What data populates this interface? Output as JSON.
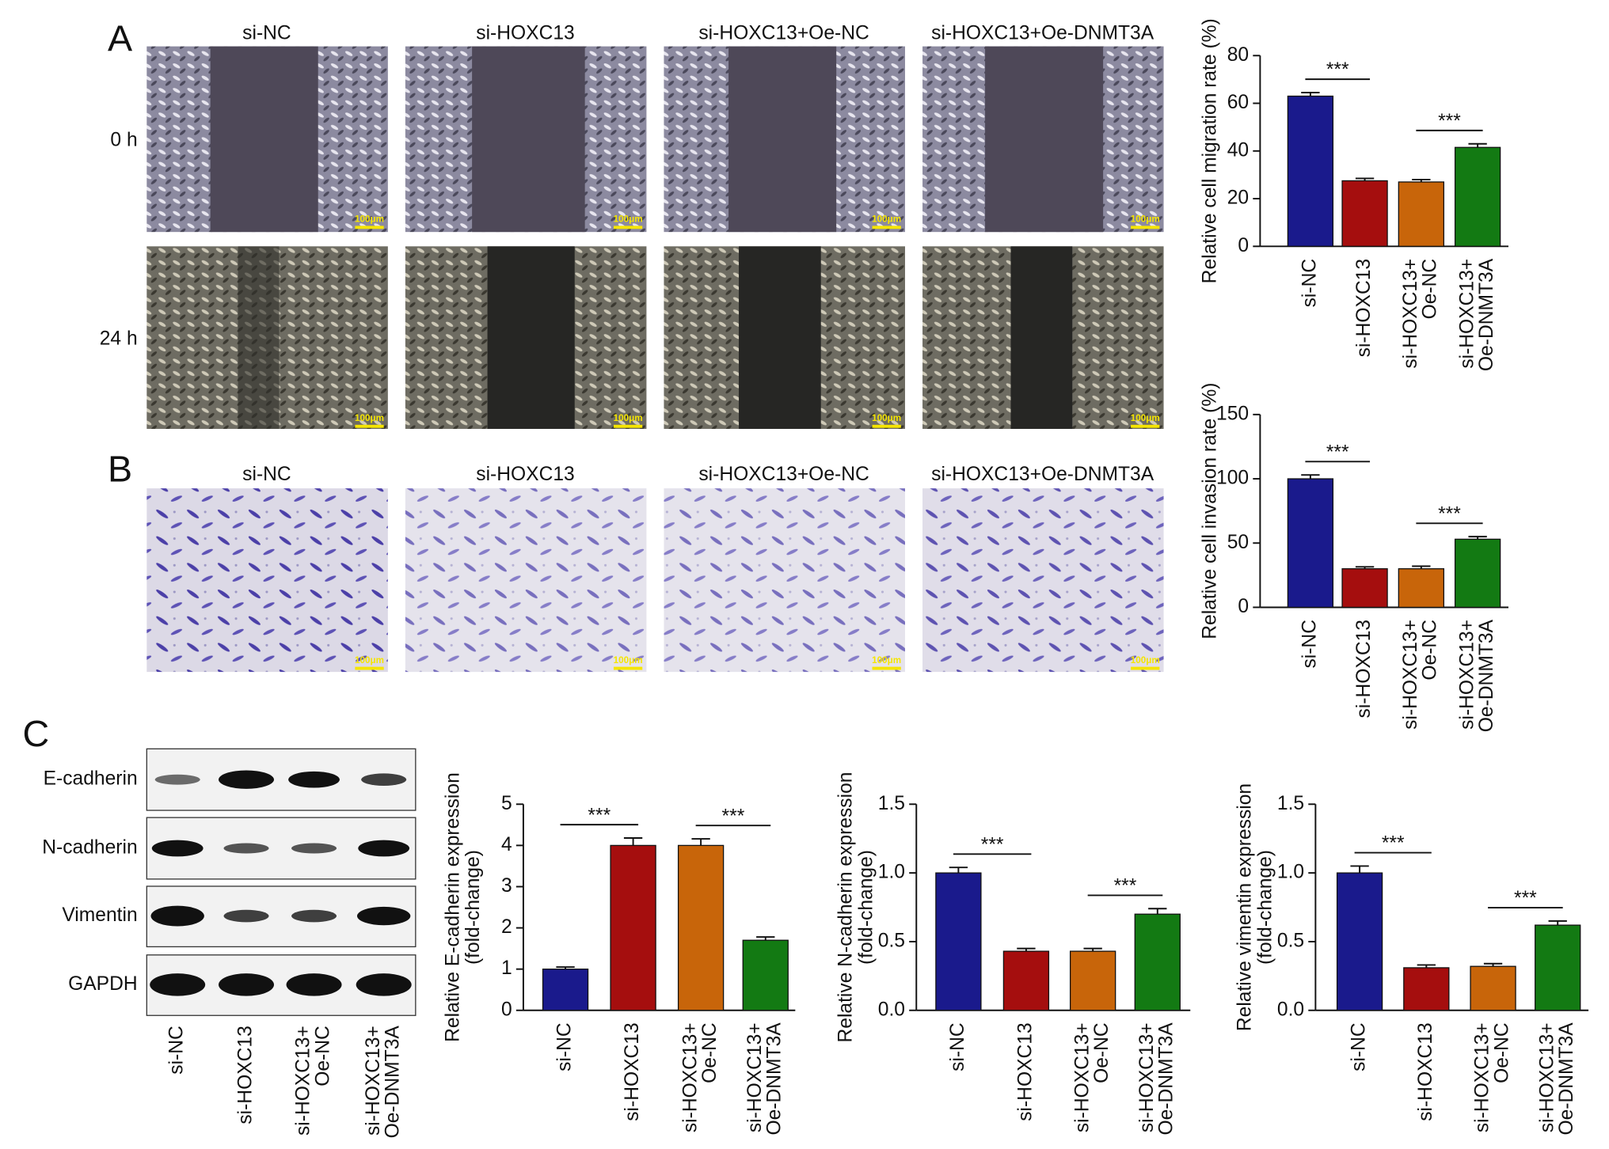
{
  "panels": {
    "letters": [
      "A",
      "B",
      "C"
    ],
    "wound_columns": [
      "si-NC",
      "si-HOXC13",
      "si-HOXC13+Oe-NC",
      "si-HOXC13+Oe-DNMT3A"
    ],
    "wound_rows": [
      "0 h",
      "24 h"
    ],
    "scale_bar": "100μm",
    "transwell_columns": [
      "si-NC",
      "si-HOXC13",
      "si-HOXC13+Oe-NC",
      "si-HOXC13+Oe-DNMT3A"
    ],
    "blot_rows": [
      "E-cadherin",
      "N-cadherin",
      "Vimentin",
      "GAPDH"
    ],
    "blot_lanes": [
      [
        "si-NC"
      ],
      [
        "si-HOXC13"
      ],
      [
        "si-HOXC13+",
        "Oe-NC"
      ],
      [
        "si-HOXC13+",
        "Oe-DNMT3A"
      ]
    ]
  },
  "chart_data": [
    {
      "type": "bar",
      "ylabel": [
        "Relative cell migration rate (%)"
      ],
      "categories": [
        [
          "si-NC"
        ],
        [
          "si-HOXC13"
        ],
        [
          "si-HOXC13+",
          "Oe-NC"
        ],
        [
          "si-HOXC13+",
          "Oe-DNMT3A"
        ]
      ],
      "values": [
        63,
        27.5,
        27,
        41.5
      ],
      "errors": [
        1.5,
        1,
        1,
        1.5
      ],
      "colors": [
        "#1a1a8c",
        "#a50e0e",
        "#c8650a",
        "#137a13"
      ],
      "ylim": [
        0,
        80
      ],
      "yticks": [
        0,
        20,
        40,
        60,
        80
      ],
      "significance": [
        {
          "from": 0,
          "to": 1,
          "label": "***"
        },
        {
          "from": 2,
          "to": 3,
          "label": "***"
        }
      ]
    },
    {
      "type": "bar",
      "ylabel": [
        "Relative cell invasion rate (%)"
      ],
      "categories": [
        [
          "si-NC"
        ],
        [
          "si-HOXC13"
        ],
        [
          "si-HOXC13+",
          "Oe-NC"
        ],
        [
          "si-HOXC13+",
          "Oe-DNMT3A"
        ]
      ],
      "values": [
        100,
        30,
        30,
        53
      ],
      "errors": [
        3,
        1.5,
        2,
        2
      ],
      "colors": [
        "#1a1a8c",
        "#a50e0e",
        "#c8650a",
        "#137a13"
      ],
      "ylim": [
        0,
        150
      ],
      "yticks": [
        0,
        50,
        100,
        150
      ],
      "significance": [
        {
          "from": 0,
          "to": 1,
          "label": "***"
        },
        {
          "from": 2,
          "to": 3,
          "label": "***"
        }
      ]
    },
    {
      "type": "bar",
      "ylabel": [
        "Relative E-cadherin expression",
        "(fold-change)"
      ],
      "categories": [
        [
          "si-NC"
        ],
        [
          "si-HOXC13"
        ],
        [
          "si-HOXC13+",
          "Oe-NC"
        ],
        [
          "si-HOXC13+",
          "Oe-DNMT3A"
        ]
      ],
      "values": [
        1.0,
        4.0,
        4.0,
        1.7
      ],
      "errors": [
        0.05,
        0.18,
        0.16,
        0.08
      ],
      "colors": [
        "#1a1a8c",
        "#a50e0e",
        "#c8650a",
        "#137a13"
      ],
      "ylim": [
        0,
        5
      ],
      "yticks": [
        0,
        1,
        2,
        3,
        4,
        5
      ],
      "significance": [
        {
          "from": 0,
          "to": 1,
          "label": "***"
        },
        {
          "from": 2,
          "to": 3,
          "label": "***"
        }
      ]
    },
    {
      "type": "bar",
      "ylabel": [
        "Relative N-cadherin expression",
        "(fold-change)"
      ],
      "categories": [
        [
          "si-NC"
        ],
        [
          "si-HOXC13"
        ],
        [
          "si-HOXC13+",
          "Oe-NC"
        ],
        [
          "si-HOXC13+",
          "Oe-DNMT3A"
        ]
      ],
      "values": [
        1.0,
        0.43,
        0.43,
        0.7
      ],
      "errors": [
        0.04,
        0.02,
        0.02,
        0.04
      ],
      "colors": [
        "#1a1a8c",
        "#a50e0e",
        "#c8650a",
        "#137a13"
      ],
      "ylim": [
        0,
        1.5
      ],
      "yticks": [
        {
          "value": 0,
          "label": "0.0"
        },
        0.5,
        {
          "value": 1,
          "label": "1.0"
        },
        1.5
      ],
      "significance": [
        {
          "from": 0,
          "to": 1,
          "label": "***"
        },
        {
          "from": 2,
          "to": 3,
          "label": "***"
        }
      ]
    },
    {
      "type": "bar",
      "ylabel": [
        "Relative vimentin expression",
        "(fold-change)"
      ],
      "categories": [
        [
          "si-NC"
        ],
        [
          "si-HOXC13"
        ],
        [
          "si-HOXC13+",
          "Oe-NC"
        ],
        [
          "si-HOXC13+",
          "Oe-DNMT3A"
        ]
      ],
      "values": [
        1.0,
        0.31,
        0.32,
        0.62
      ],
      "errors": [
        0.05,
        0.02,
        0.02,
        0.03
      ],
      "colors": [
        "#1a1a8c",
        "#a50e0e",
        "#c8650a",
        "#137a13"
      ],
      "ylim": [
        0,
        1.5
      ],
      "yticks": [
        {
          "value": 0,
          "label": "0.0"
        },
        0.5,
        {
          "value": 1,
          "label": "1.0"
        },
        1.5
      ],
      "significance": [
        {
          "from": 0,
          "to": 1,
          "label": "***"
        },
        {
          "from": 2,
          "to": 3,
          "label": "***"
        }
      ]
    }
  ]
}
